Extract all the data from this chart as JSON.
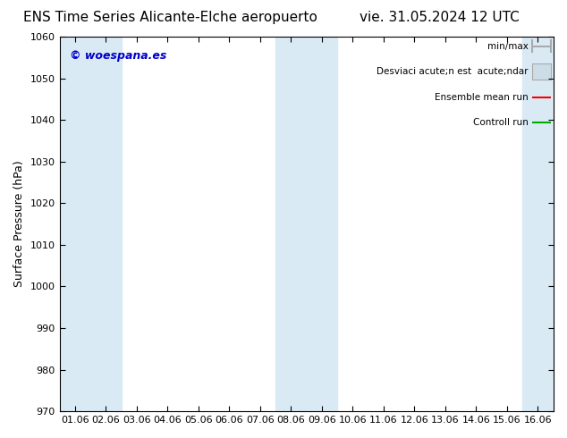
{
  "title_left": "ENS Time Series Alicante-Elche aeropuerto",
  "title_right": "vie. 31.05.2024 12 UTC",
  "ylabel": "Surface Pressure (hPa)",
  "ylim": [
    970,
    1060
  ],
  "yticks": [
    970,
    980,
    990,
    1000,
    1010,
    1020,
    1030,
    1040,
    1050,
    1060
  ],
  "xtick_labels": [
    "01.06",
    "02.06",
    "03.06",
    "04.06",
    "05.06",
    "06.06",
    "07.06",
    "08.06",
    "09.06",
    "10.06",
    "11.06",
    "12.06",
    "13.06",
    "14.06",
    "15.06",
    "16.06"
  ],
  "bg_color": "#ffffff",
  "plot_bg_color": "#ffffff",
  "band_color": "#daeaf5",
  "band_x_positions": [
    0,
    1,
    7,
    8,
    15
  ],
  "watermark": "© woespana.es",
  "watermark_color": "#0000cc",
  "legend_label_1": "min/max",
  "legend_label_2": "Desviaci acute;n est  acute;ndar",
  "legend_label_3": "Ensemble mean run",
  "legend_label_4": "Controll run",
  "legend_color_1": "#aaaaaa",
  "legend_color_2": "#ccdde8",
  "legend_color_3": "#ff0000",
  "legend_color_4": "#00aa00",
  "title_fontsize": 11,
  "axis_fontsize": 9,
  "tick_fontsize": 8,
  "legend_fontsize": 7.5
}
